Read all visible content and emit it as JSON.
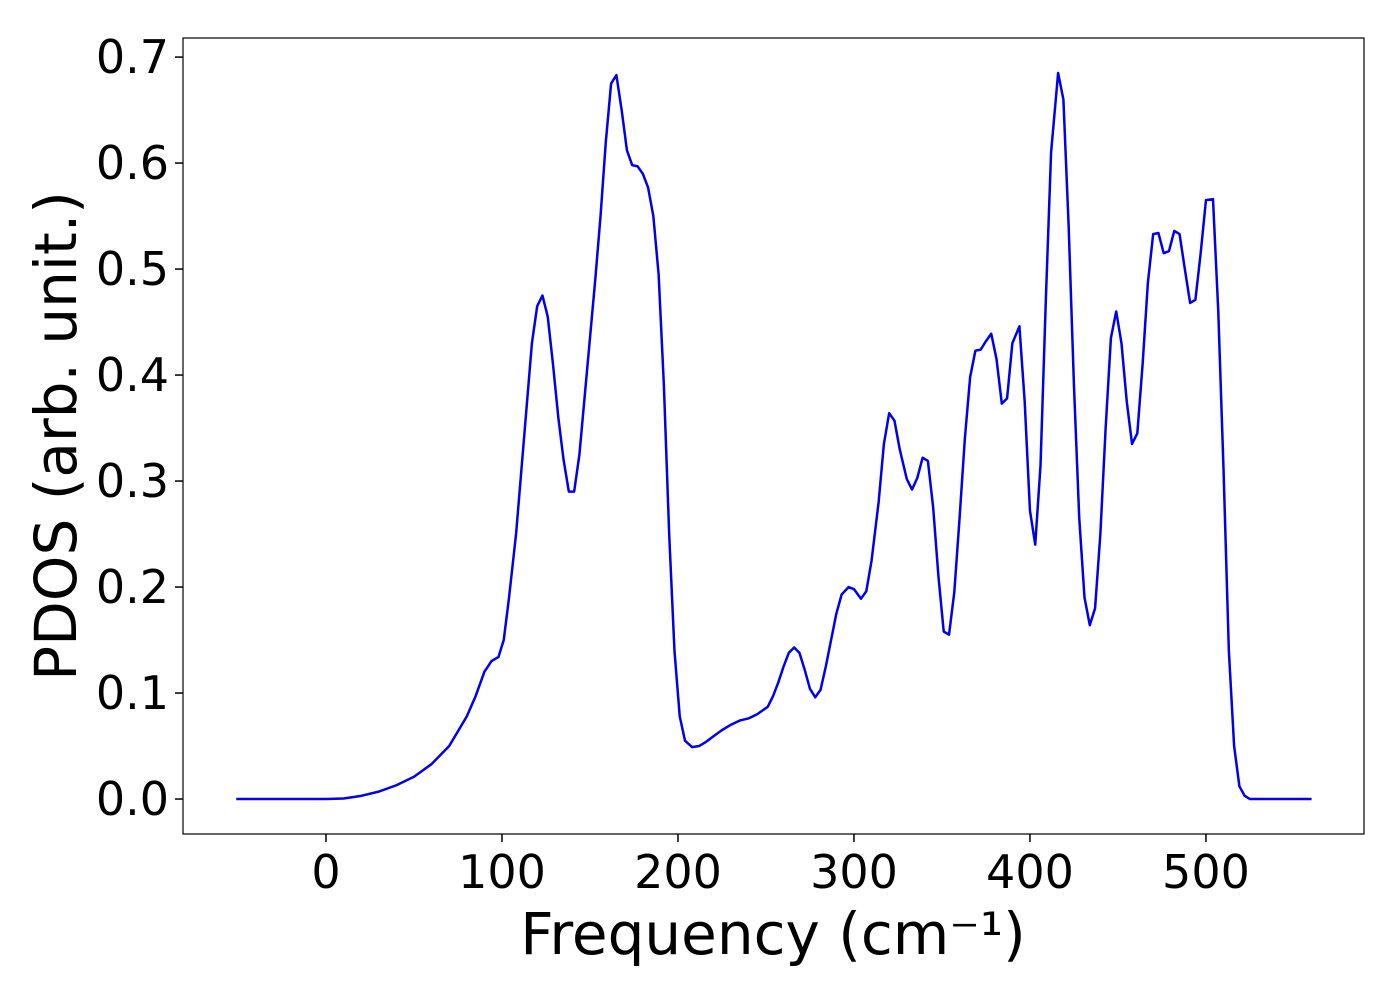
{
  "chart_data": {
    "type": "line",
    "xlabel": "Frequency (cm⁻¹)",
    "ylabel": "PDOS (arb. unit.)",
    "color": "#0000ee",
    "xlim": [
      -81.25,
      589.8
    ],
    "ylim": [
      -0.033,
      0.718
    ],
    "xticks": [
      0,
      100,
      200,
      300,
      400,
      500
    ],
    "yticks": [
      {
        "value": 0,
        "label": "0.0"
      },
      0.1,
      0.2,
      0.3,
      0.4,
      0.5,
      0.6,
      0.7
    ],
    "x": [
      -51,
      -25,
      0,
      10,
      20,
      30,
      40,
      50,
      60,
      70,
      80,
      85,
      90,
      94,
      98,
      101,
      104,
      108,
      111,
      114,
      117,
      120,
      123,
      126,
      129,
      132,
      135,
      138,
      141,
      144,
      147,
      150,
      153,
      156,
      159,
      162,
      165,
      168,
      171,
      174,
      177,
      180,
      183,
      186,
      189,
      192,
      195,
      198,
      201,
      204,
      208,
      212,
      216,
      220,
      225,
      230,
      235,
      240,
      245,
      251,
      254,
      257,
      260,
      263,
      266,
      269,
      272,
      275,
      278,
      281,
      284,
      287,
      290,
      293,
      297,
      300,
      304,
      307,
      310,
      314,
      317,
      320,
      323,
      326,
      330,
      333,
      336,
      339,
      342,
      345,
      348,
      351,
      354,
      357,
      360,
      363,
      366,
      369,
      372,
      375,
      378,
      381,
      384,
      387,
      390,
      394,
      397,
      400,
      403,
      406,
      409,
      412,
      416,
      419,
      422,
      425,
      428,
      431,
      434,
      437,
      440,
      443,
      446,
      449,
      452,
      455,
      458,
      461,
      464,
      467,
      470,
      473,
      476,
      479,
      482,
      485,
      488,
      491,
      494,
      497,
      500,
      504,
      507,
      510,
      513,
      516,
      519,
      522,
      525,
      560
    ],
    "values": [
      0,
      0,
      0,
      0.0005,
      0.003,
      0.007,
      0.013,
      0.021,
      0.033,
      0.05,
      0.078,
      0.097,
      0.12,
      0.13,
      0.134,
      0.15,
      0.19,
      0.25,
      0.31,
      0.37,
      0.43,
      0.465,
      0.475,
      0.455,
      0.41,
      0.36,
      0.32,
      0.29,
      0.29,
      0.325,
      0.38,
      0.435,
      0.49,
      0.55,
      0.62,
      0.675,
      0.683,
      0.65,
      0.612,
      0.598,
      0.597,
      0.59,
      0.577,
      0.55,
      0.495,
      0.39,
      0.25,
      0.14,
      0.078,
      0.055,
      0.049,
      0.05,
      0.054,
      0.059,
      0.065,
      0.07,
      0.074,
      0.076,
      0.08,
      0.087,
      0.097,
      0.11,
      0.125,
      0.138,
      0.143,
      0.138,
      0.122,
      0.104,
      0.096,
      0.103,
      0.125,
      0.15,
      0.175,
      0.193,
      0.2,
      0.198,
      0.189,
      0.196,
      0.225,
      0.28,
      0.335,
      0.364,
      0.357,
      0.33,
      0.302,
      0.292,
      0.303,
      0.322,
      0.319,
      0.275,
      0.21,
      0.158,
      0.155,
      0.195,
      0.265,
      0.34,
      0.398,
      0.423,
      0.424,
      0.432,
      0.439,
      0.415,
      0.373,
      0.378,
      0.43,
      0.446,
      0.375,
      0.272,
      0.24,
      0.315,
      0.47,
      0.61,
      0.685,
      0.66,
      0.54,
      0.39,
      0.265,
      0.19,
      0.164,
      0.18,
      0.25,
      0.35,
      0.435,
      0.46,
      0.43,
      0.375,
      0.335,
      0.345,
      0.41,
      0.487,
      0.533,
      0.534,
      0.515,
      0.517,
      0.536,
      0.533,
      0.5,
      0.468,
      0.471,
      0.515,
      0.565,
      0.566,
      0.46,
      0.31,
      0.14,
      0.05,
      0.012,
      0.003,
      0,
      0
    ]
  }
}
